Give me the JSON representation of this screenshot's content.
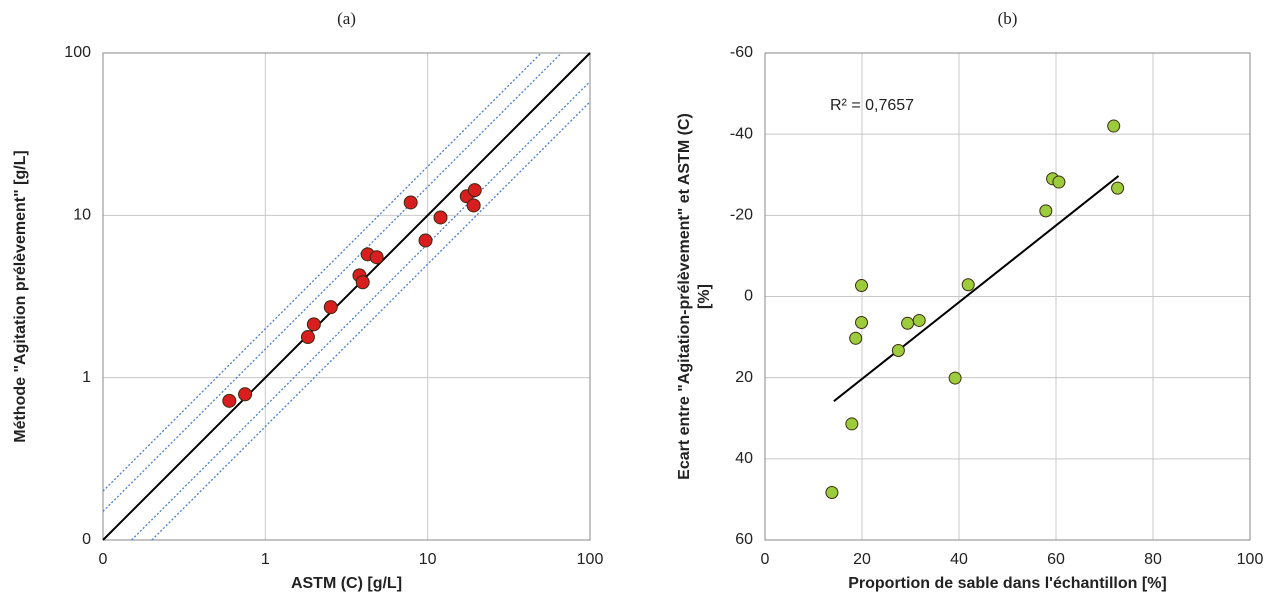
{
  "chart_data": [
    {
      "type": "scatter",
      "title": "(a)",
      "xlabel": "ASTM (C) [g/L]",
      "ylabel": [
        "Méthode  \"Agitation prélèvement\" [g/L]"
      ],
      "log": true,
      "grid": true,
      "xlim": [
        0.1,
        100
      ],
      "ylim": [
        0.1,
        100
      ],
      "xticks": [
        {
          "value": 0.1,
          "label": "0"
        },
        1,
        10,
        100
      ],
      "yticks": [
        {
          "value": 0.1,
          "label": "0"
        },
        1,
        10,
        100
      ],
      "lines": [
        {
          "x": [
            0.1,
            100
          ],
          "values": [
            0.1,
            100
          ],
          "color": "#000000",
          "style": "solid"
        },
        {
          "x": [
            0.1,
            66.7
          ],
          "values": [
            0.15,
            100
          ],
          "color": "#4a7fd0",
          "style": "dotted"
        },
        {
          "x": [
            0.1,
            50
          ],
          "values": [
            0.2,
            100
          ],
          "color": "#4a7fd0",
          "style": "dotted"
        },
        {
          "x": [
            0.15,
            100
          ],
          "values": [
            0.1,
            66.7
          ],
          "color": "#4a7fd0",
          "style": "dotted"
        },
        {
          "x": [
            0.2,
            100
          ],
          "values": [
            0.1,
            50
          ],
          "color": "#4a7fd0",
          "style": "dotted"
        }
      ],
      "series": [
        {
          "color": "#d81e1e",
          "x": [
            0.6,
            0.75,
            1.83,
            1.99,
            2.53,
            3.8,
            3.98,
            4.27,
            4.85,
            7.86,
            9.7,
            12.0,
            17.4,
            19.5,
            19.2
          ],
          "values": [
            0.72,
            0.79,
            1.78,
            2.13,
            2.72,
            4.27,
            3.87,
            5.75,
            5.52,
            12.0,
            7.0,
            9.7,
            13.1,
            14.3,
            11.5
          ]
        }
      ]
    },
    {
      "type": "scatter",
      "title": "(b)",
      "xlabel": "Proportion de sable dans l'échantillon [%]",
      "ylabel": [
        "Ecart entre \"Agitation-prélèvement\" et ASTM (C)",
        "[%]"
      ],
      "log": false,
      "grid": true,
      "xlim": [
        0,
        100
      ],
      "ylim": [
        60,
        -60
      ],
      "xticks": [
        0,
        20,
        40,
        60,
        80,
        100
      ],
      "yticks": [
        -60,
        -40,
        -20,
        0,
        20,
        40,
        60
      ],
      "annotation": "R² = 0,7657",
      "lines": [
        {
          "x": [
            14.2,
            72.9
          ],
          "values": [
            25.8,
            -29.7
          ],
          "color": "#000000",
          "style": "solid"
        }
      ],
      "series": [
        {
          "color": "#9ccc3c",
          "x": [
            13.8,
            17.9,
            18.7,
            19.9,
            19.9,
            27.5,
            29.4,
            31.8,
            39.2,
            41.9,
            57.9,
            59.3,
            60.6,
            71.9,
            72.7
          ],
          "values": [
            48.3,
            31.4,
            10.3,
            -2.7,
            6.4,
            13.3,
            6.6,
            5.9,
            20.1,
            -2.9,
            -21.1,
            -29.0,
            -28.2,
            -42.0,
            -26.7
          ]
        }
      ]
    }
  ]
}
